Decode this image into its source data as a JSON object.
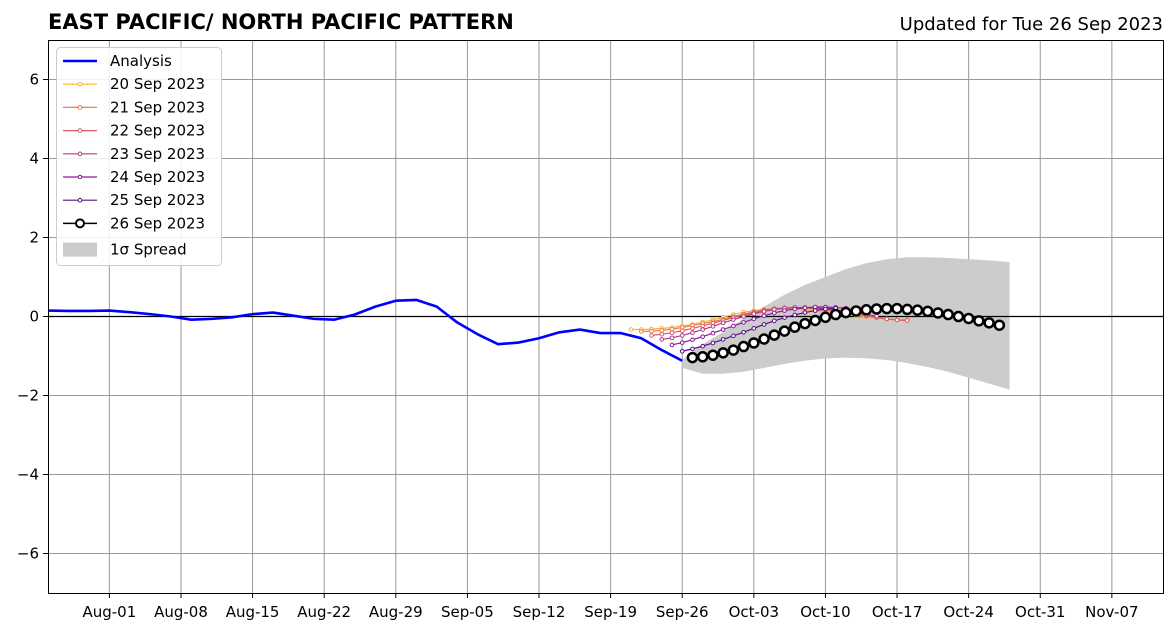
{
  "colors": {
    "analysis": "#0000ff",
    "spread": "#cccccc",
    "grid": "#999999",
    "zero_line": "#000000"
  },
  "chart_data": {
    "type": "line",
    "title": "EAST PACIFIC/ NORTH PACIFIC PATTERN",
    "subtitle": "Updated for Tue 26 Sep 2023",
    "xlabel": "",
    "ylabel": "",
    "xlim": [
      "2023-07-26",
      "2023-11-12"
    ],
    "ylim": [
      -7,
      7
    ],
    "grid": true,
    "legend_position": "top-left",
    "x_ticks": [
      "Aug-01",
      "Aug-08",
      "Aug-15",
      "Aug-22",
      "Aug-29",
      "Sep-05",
      "Sep-12",
      "Sep-19",
      "Sep-26",
      "Oct-03",
      "Oct-10",
      "Oct-17",
      "Oct-24",
      "Oct-31",
      "Nov-07"
    ],
    "y_ticks": [
      "6",
      "4",
      "2",
      "0",
      "−2",
      "−4",
      "−6"
    ],
    "analysis": {
      "name": "Analysis",
      "color": "#0000ff",
      "x": [
        "2023-07-26",
        "2023-07-28",
        "2023-07-30",
        "2023-08-01",
        "2023-08-03",
        "2023-08-05",
        "2023-08-07",
        "2023-08-09",
        "2023-08-11",
        "2023-08-13",
        "2023-08-15",
        "2023-08-17",
        "2023-08-19",
        "2023-08-21",
        "2023-08-23",
        "2023-08-25",
        "2023-08-27",
        "2023-08-29",
        "2023-08-31",
        "2023-09-02",
        "2023-09-04",
        "2023-09-06",
        "2023-09-08",
        "2023-09-10",
        "2023-09-12",
        "2023-09-14",
        "2023-09-16",
        "2023-09-18",
        "2023-09-20",
        "2023-09-22",
        "2023-09-24",
        "2023-09-26"
      ],
      "y": [
        0.15,
        0.14,
        0.14,
        0.15,
        0.11,
        0.06,
        0.0,
        -0.08,
        -0.06,
        -0.02,
        0.06,
        0.1,
        0.02,
        -0.06,
        -0.08,
        0.05,
        0.25,
        0.4,
        0.42,
        0.25,
        -0.15,
        -0.45,
        -0.7,
        -0.66,
        -0.55,
        -0.4,
        -0.33,
        -0.42,
        -0.42,
        -0.55,
        -0.85,
        -1.12
      ]
    },
    "spread": {
      "name": "1σ Spread",
      "x": [
        "2023-09-26",
        "2023-09-28",
        "2023-09-30",
        "2023-10-02",
        "2023-10-04",
        "2023-10-06",
        "2023-10-08",
        "2023-10-10",
        "2023-10-12",
        "2023-10-14",
        "2023-10-16",
        "2023-10-18",
        "2023-10-20",
        "2023-10-22",
        "2023-10-24",
        "2023-10-26",
        "2023-10-28"
      ],
      "upper": [
        -1.1,
        -0.7,
        -0.4,
        -0.05,
        0.25,
        0.55,
        0.8,
        1.0,
        1.2,
        1.35,
        1.45,
        1.5,
        1.5,
        1.48,
        1.45,
        1.42,
        1.38
      ],
      "lower": [
        -1.3,
        -1.45,
        -1.45,
        -1.4,
        -1.3,
        -1.2,
        -1.12,
        -1.06,
        -1.04,
        -1.06,
        -1.1,
        -1.18,
        -1.28,
        -1.4,
        -1.55,
        -1.7,
        -1.85
      ]
    },
    "series": [
      {
        "name": "20 Sep 2023",
        "color": "#f5b235",
        "x_start": "2023-09-21",
        "values": [
          -0.33,
          -0.33,
          -0.32,
          -0.3,
          -0.28,
          -0.24,
          -0.2,
          -0.14,
          -0.08,
          -0.02,
          0.05,
          0.11,
          0.15,
          0.18,
          0.2,
          0.2,
          0.19,
          0.17,
          0.14,
          0.11,
          0.08,
          0.05,
          0.02,
          -0.01,
          -0.04,
          -0.07,
          -0.09,
          -0.1
        ]
      },
      {
        "name": "21 Sep 2023",
        "color": "#ed7f47",
        "x_start": "2023-09-22",
        "values": [
          -0.38,
          -0.37,
          -0.35,
          -0.32,
          -0.28,
          -0.23,
          -0.18,
          -0.13,
          -0.07,
          0.0,
          0.06,
          0.12,
          0.17,
          0.2,
          0.22,
          0.22,
          0.21,
          0.19,
          0.16,
          0.13,
          0.09,
          0.05,
          0.01,
          -0.03,
          -0.06,
          -0.08,
          -0.09
        ]
      },
      {
        "name": "22 Sep 2023",
        "color": "#dd5869",
        "x_start": "2023-09-23",
        "values": [
          -0.48,
          -0.45,
          -0.41,
          -0.36,
          -0.3,
          -0.24,
          -0.17,
          -0.1,
          -0.03,
          0.04,
          0.1,
          0.15,
          0.19,
          0.21,
          0.22,
          0.22,
          0.21,
          0.18,
          0.15,
          0.11,
          0.06,
          0.02,
          -0.02,
          -0.06,
          -0.09,
          -0.1
        ]
      },
      {
        "name": "23 Sep 2023",
        "color": "#b43a88",
        "x_start": "2023-09-24",
        "values": [
          -0.58,
          -0.54,
          -0.48,
          -0.41,
          -0.33,
          -0.25,
          -0.16,
          -0.08,
          0.0,
          0.07,
          0.13,
          0.18,
          0.21,
          0.23,
          0.23,
          0.22,
          0.2,
          0.17,
          0.13,
          0.09,
          0.05,
          0.01
        ]
      },
      {
        "name": "24 Sep 2023",
        "color": "#8a1a99",
        "x_start": "2023-09-25",
        "values": [
          -0.72,
          -0.66,
          -0.59,
          -0.51,
          -0.42,
          -0.33,
          -0.24,
          -0.15,
          -0.06,
          0.02,
          0.09,
          0.15,
          0.19,
          0.22,
          0.24,
          0.24,
          0.23,
          0.21
        ]
      },
      {
        "name": "25 Sep 2023",
        "color": "#5a0f8a",
        "x_start": "2023-09-26",
        "values": [
          -0.88,
          -0.82,
          -0.75,
          -0.67,
          -0.58,
          -0.49,
          -0.4,
          -0.3,
          -0.2,
          -0.11,
          -0.03,
          0.04,
          0.1,
          0.15,
          0.19,
          0.21
        ]
      },
      {
        "name": "26 Sep 2023",
        "color": "#000000",
        "x_start": "2023-09-27",
        "values": [
          -1.04,
          -1.02,
          -0.98,
          -0.92,
          -0.85,
          -0.76,
          -0.67,
          -0.57,
          -0.47,
          -0.37,
          -0.27,
          -0.18,
          -0.1,
          -0.02,
          0.05,
          0.1,
          0.14,
          0.17,
          0.19,
          0.2,
          0.2,
          0.18,
          0.16,
          0.13,
          0.09,
          0.05,
          0.0,
          -0.05,
          -0.11,
          -0.16,
          -0.22
        ]
      }
    ],
    "legend": [
      "Analysis",
      "20 Sep 2023",
      "21 Sep 2023",
      "22 Sep 2023",
      "23 Sep 2023",
      "24 Sep 2023",
      "25 Sep 2023",
      "26 Sep 2023",
      "1σ Spread"
    ]
  }
}
